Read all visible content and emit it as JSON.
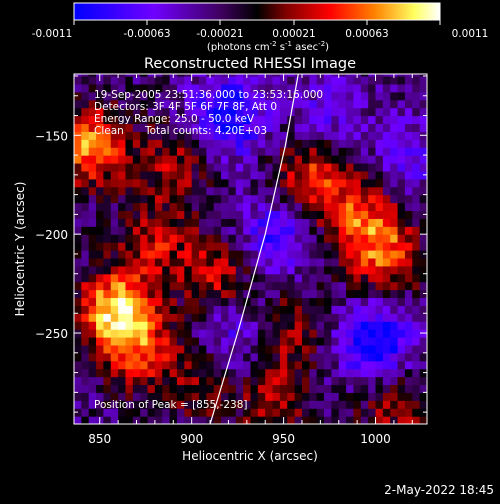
{
  "colorbar": {
    "ticks": [
      "-0.0011",
      "-0.00063",
      "-0.00021",
      "0.00021",
      "0.00063",
      "0.0011"
    ],
    "unit_prefix": "(photons cm",
    "unit_exp1": "-2",
    "unit_mid1": " s",
    "unit_exp2": "-1",
    "unit_mid2": " asec",
    "unit_exp3": "-2",
    "unit_suffix": ")"
  },
  "info": {
    "time_range": "19-Sep-2005 23:51:36.000 to 23:53:16.000",
    "detectors": "Detectors: 3F 4F 5F 6F 7F 8F, Att 0",
    "energy": "Energy Range: 25.0 - 50.0 keV",
    "method": "Clean",
    "counts": "Total counts: 4.20E+03",
    "peak": "Position of Peak = [855,-238]"
  },
  "timestamp": "2-May-2022 18:45",
  "chart_data": {
    "type": "heatmap",
    "title": "Reconstructed RHESSI Image",
    "xlabel": "Heliocentric X (arcsec)",
    "ylabel": "Heliocentric Y (arcsec)",
    "xlim": [
      836,
      1028
    ],
    "ylim": [
      -296,
      -119
    ],
    "xticks": [
      850,
      900,
      950,
      1000
    ],
    "yticks": [
      -250,
      -200,
      -150
    ],
    "color_range": [
      -0.0011,
      0.0011
    ],
    "colormap": [
      "#0000ff",
      "#7000ff",
      "#400060",
      "#000000",
      "#800000",
      "#ff0000",
      "#ff8000",
      "#ffff60",
      "#ffffff"
    ],
    "peak": [
      855,
      -238
    ],
    "hotspots": [
      {
        "x": 845,
        "y": -155,
        "v": 0.00095
      },
      {
        "x": 858,
        "y": -238,
        "v": 0.0011
      },
      {
        "x": 872,
        "y": -258,
        "v": 0.0007
      },
      {
        "x": 880,
        "y": -205,
        "v": 0.00055
      },
      {
        "x": 890,
        "y": -165,
        "v": 0.0005
      },
      {
        "x": 915,
        "y": -220,
        "v": 0.0006
      },
      {
        "x": 905,
        "y": -275,
        "v": 0.0004
      },
      {
        "x": 965,
        "y": -170,
        "v": 0.0007
      },
      {
        "x": 990,
        "y": -190,
        "v": 0.00065
      },
      {
        "x": 1005,
        "y": -210,
        "v": 0.0008
      },
      {
        "x": 950,
        "y": -250,
        "v": 0.0005
      },
      {
        "x": 945,
        "y": -285,
        "v": 0.00045
      },
      {
        "x": 1010,
        "y": -285,
        "v": 0.0005
      }
    ],
    "coldspots": [
      {
        "x": 920,
        "y": -140,
        "v": -0.0009
      },
      {
        "x": 945,
        "y": -200,
        "v": -0.0006
      },
      {
        "x": 1000,
        "y": -255,
        "v": -0.0009
      },
      {
        "x": 975,
        "y": -140,
        "v": -0.0004
      },
      {
        "x": 925,
        "y": -250,
        "v": -0.0005
      },
      {
        "x": 1020,
        "y": -160,
        "v": -0.0004
      }
    ],
    "limb": [
      [
        910,
        -296
      ],
      [
        925,
        -250
      ],
      [
        940,
        -200
      ],
      [
        951,
        -155
      ],
      [
        958,
        -119
      ]
    ]
  }
}
